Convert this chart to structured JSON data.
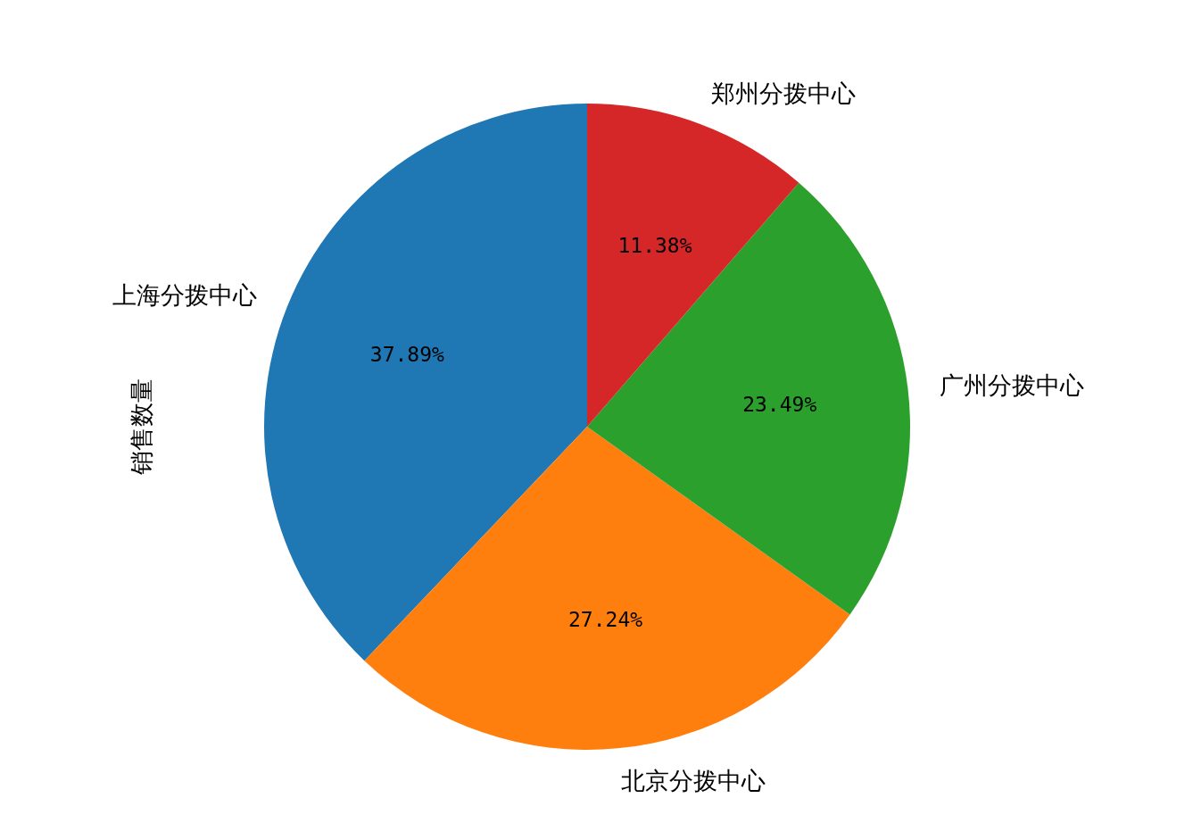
{
  "chart_data": {
    "type": "pie",
    "ylabel": "销售数量",
    "categories": [
      "上海分拨中心",
      "北京分拨中心",
      "广州分拨中心",
      "郑州分拨中心"
    ],
    "values": [
      37.89,
      27.24,
      23.49,
      11.38
    ],
    "colors": [
      "#1f77b4",
      "#ff7f0e",
      "#2ca02c",
      "#d62728"
    ],
    "value_labels": [
      "37.89%",
      "27.24%",
      "23.49%",
      "11.38%"
    ]
  }
}
